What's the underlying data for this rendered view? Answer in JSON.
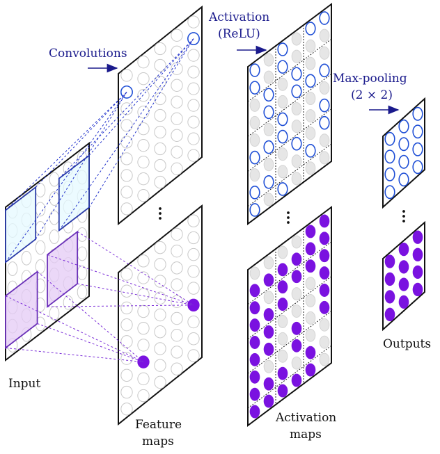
{
  "labels": {
    "convolutions": "Convolutions",
    "activation_line1": "Activation",
    "activation_line2": "(ReLU)",
    "maxpool_line1": "Max-pooling",
    "maxpool_line2": "(2 × 2)",
    "input": "Input",
    "feature_line1": "Feature",
    "feature_line2": "maps",
    "activation_maps_line1": "Activation",
    "activation_maps_line2": "maps",
    "outputs": "Outputs"
  },
  "colors": {
    "frame": "#111111",
    "plane_fill": "#ffffff",
    "neuron_empty_stroke": "#c8c8c8",
    "neuron_gray_fill": "#e6e6e6",
    "blue_stroke": "#1f4fd6",
    "blue_fill": "#ffffff",
    "purple_fill": "#7a12e0",
    "connection_blue": "#2233cc",
    "connection_purple": "#7a2cd8",
    "arrow": "#1a1a8c",
    "patch_blue_fill": "#e6faff",
    "patch_blue_stroke": "#2a3aa8",
    "patch_purple_fill": "#e4cbf6",
    "patch_purple_stroke": "#6a30b8"
  },
  "icons": {
    "ellipsis": "vertical-ellipsis-icon",
    "arrow": "right-arrow-icon"
  }
}
